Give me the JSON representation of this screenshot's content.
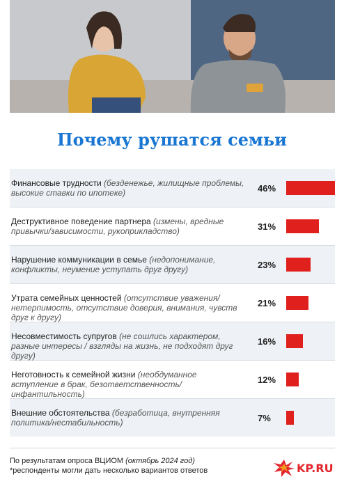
{
  "photo": {
    "description_icon": "couple-photo"
  },
  "title": "Почему рушатся семьи",
  "chart_data": {
    "type": "bar",
    "orientation": "horizontal",
    "title": "Почему рушатся семьи",
    "unit": "%",
    "categories": [
      {
        "main": "Финансовые трудности",
        "note": "(безденежье, жилищные проблемы, высокие ставки по ипотеке)"
      },
      {
        "main": "Деструктивное поведение партнера",
        "note": "(измены, вредные привычки/зависимости, рукоприкладство)"
      },
      {
        "main": "Нарушение коммуникации в семье",
        "note": "(недопонимание, конфликты, неумение уступать друг другу)"
      },
      {
        "main": "Утрата семейных ценностей",
        "note": "(отсутствие уважения/нетерпимость, отсутствие доверия, внимания, чувств друг к другу)"
      },
      {
        "main": "Несовместимость супругов",
        "note": "(не сошлись характером, разные интересы / взгляды на жизнь, не подходят друг другу)"
      },
      {
        "main": "Неготовность к семейной жизни",
        "note": "(необдуманное вступление в брак, безответственность/инфантильность)"
      },
      {
        "main": "Внешние обстоятельства",
        "note": "(безработица, внутренняя политика/нестабильность)"
      }
    ],
    "values": [
      46,
      31,
      23,
      21,
      16,
      12,
      7
    ],
    "labels": [
      "46%",
      "31%",
      "23%",
      "21%",
      "16%",
      "12%",
      "7%"
    ],
    "bar_color": "#e0201c",
    "xlim": [
      0,
      46
    ]
  },
  "footer": {
    "source_prefix": "По результатам опроса ВЦИОМ ",
    "source_date": "(октябрь 2024 год)",
    "note": "*респонденты могли дать несколько вариантов ответов"
  },
  "logo": {
    "text": "KP.RU",
    "icon": "kp-star-icon"
  },
  "colors": {
    "title": "#1976d2",
    "bar": "#e0201c"
  }
}
